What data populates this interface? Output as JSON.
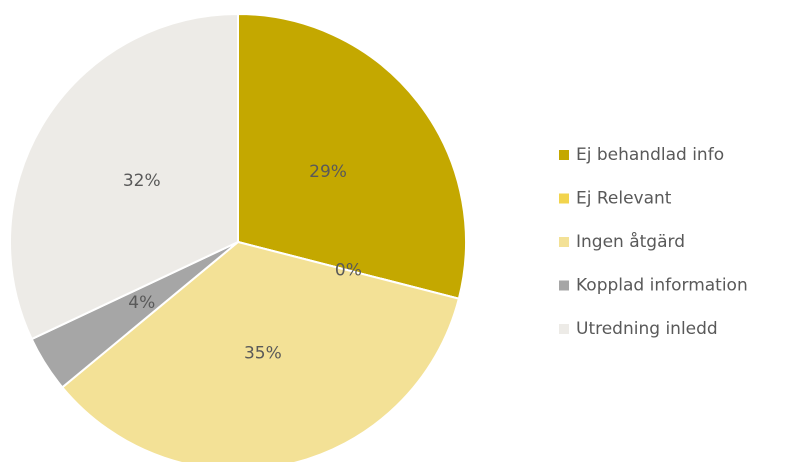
{
  "chart_data": {
    "type": "pie",
    "categories": [
      "Ej behandlad info",
      "Ej Relevant",
      "Ingen åtgärd",
      "Kopplad information",
      "Utredning inledd"
    ],
    "values": [
      29,
      0,
      35,
      4,
      32
    ],
    "value_labels": [
      "29%",
      "0%",
      "35%",
      "4%",
      "32%"
    ],
    "colors": [
      "#c4a800",
      "#f2d44d",
      "#f3e196",
      "#a6a6a6",
      "#edebe7"
    ],
    "legend": "right"
  }
}
